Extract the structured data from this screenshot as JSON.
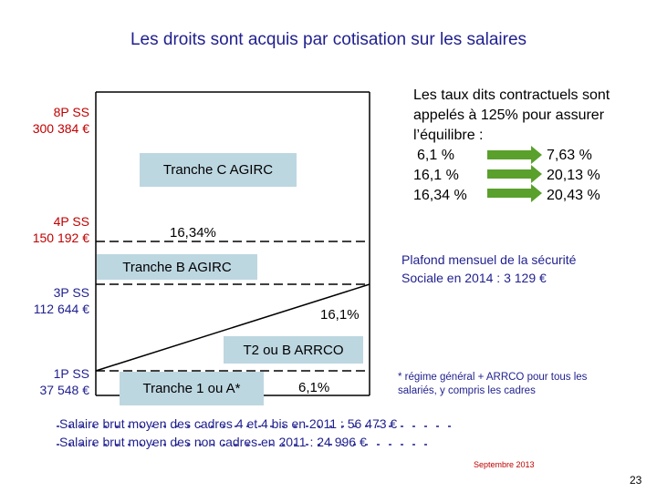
{
  "title": "Les droits sont acquis par cotisation sur les salaires",
  "levels": [
    {
      "name": "8P SS",
      "amount": "300 384 €",
      "color": "#c00000"
    },
    {
      "name": "4P SS",
      "amount": "150 192 €",
      "color": "#c00000"
    },
    {
      "name": "3P SS",
      "amount": "112 644 €",
      "color": "#1f1f8f"
    },
    {
      "name": "1P SS",
      "amount": "37 548 €",
      "color": "#1f1f8f"
    }
  ],
  "tranches": {
    "c": "Tranche C AGIRC",
    "b": "Tranche B AGIRC",
    "t2": "T2 ou B ARRCO",
    "t1": "Tranche 1 ou  A*"
  },
  "rates_in_chart": {
    "c_rate": "16,34%",
    "b_rate": "16,1%",
    "t1_rate": "6,1%"
  },
  "taux_note": {
    "intro": [
      "Les taux dits contractuels sont",
      "appelés à 125% pour assurer",
      "l’équilibre :"
    ],
    "rows": [
      {
        "from": "6,1 %",
        "to": "7,63 %"
      },
      {
        "from": "16,1 %",
        "to": "20,13 %"
      },
      {
        "from": "16,34 %",
        "to": "20,43 %"
      }
    ]
  },
  "plafond": [
    "Plafond mensuel de la sécurité",
    "Sociale en 2014  : 3 129 €"
  ],
  "regime_note": [
    "* régime général + ARRCO pour tous les",
    "salariés, y compris les cadres"
  ],
  "salaires": [
    "Salaire brut moyen des cadres 4 et 4 bis en 2011 : 56 473 €",
    "Salaire brut moyen des non cadres en 2011 : 24 996 €"
  ],
  "date": "Septembre 2013",
  "page_number": "23",
  "colors": {
    "title": "#1f1f8f",
    "red_label": "#c00000",
    "box_fill": "#bdd7e1",
    "arrow_green": "#5aa02c"
  }
}
